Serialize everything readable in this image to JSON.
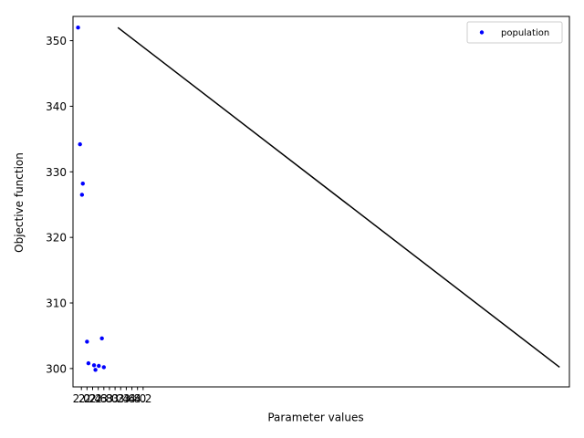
{
  "chart_data": {
    "type": "scatter",
    "title": "",
    "xlabel": "Parameter values",
    "ylabel": "Objective function",
    "xlim": [
      1.7,
      19.4
    ],
    "ylim": [
      297.2,
      353.7
    ],
    "yticks": [
      300,
      310,
      320,
      330,
      340,
      350
    ],
    "xticks": [
      2.0,
      2.2,
      2.4,
      2.6,
      2.8,
      3.0,
      3.2,
      3.4,
      3.6,
      3.8,
      4.0,
      4.2
    ],
    "xtick_labels": [
      "2.0",
      "2.2",
      "2.4",
      "2.6",
      "2.8",
      "3.0",
      "3.2",
      "3.4",
      "3.6",
      "3.8",
      "4.0",
      "4.2"
    ],
    "legend": {
      "position": "top-right",
      "entries": [
        "population"
      ]
    },
    "grid": false,
    "series": [
      {
        "name": "population",
        "kind": "points",
        "color": "#0000ff",
        "x": [
          1.88,
          1.95,
          2.05,
          2.02,
          2.2,
          2.25,
          2.45,
          2.5,
          2.62,
          2.73,
          2.8
        ],
        "y": [
          352.0,
          334.2,
          328.2,
          326.5,
          304.1,
          300.8,
          300.5,
          299.8,
          300.4,
          304.6,
          300.2
        ]
      },
      {
        "kind": "line",
        "color": "#000000",
        "x": [
          3.3,
          19.05
        ],
        "y": [
          352.0,
          300.2
        ]
      }
    ]
  }
}
